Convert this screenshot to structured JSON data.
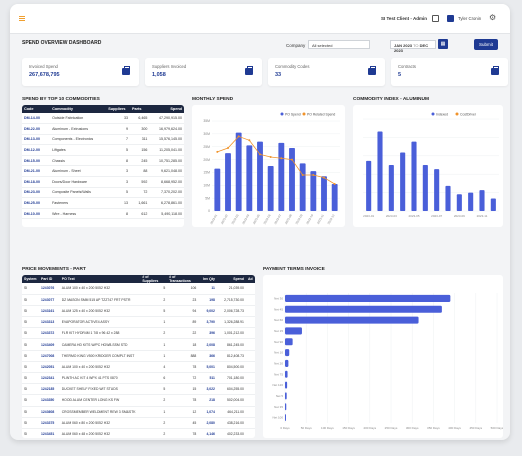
{
  "header": {
    "client": "SI Test Client - Admin",
    "user": "Tyler Cronin"
  },
  "dashboard": {
    "title": "SPEND OVERVIEW DASHBOARD",
    "company_label": "Company",
    "company_value": "All selected",
    "date_from": "JAN 2023",
    "date_to": "DEC 2023",
    "date_sep": "TO",
    "submit_label": "Submit"
  },
  "kpis": [
    {
      "label": "Invoiced Spend",
      "value": "267,678,795"
    },
    {
      "label": "Suppliers Invoiced",
      "value": "1,058"
    },
    {
      "label": "Commodity Codes",
      "value": "33"
    },
    {
      "label": "Contracts",
      "value": "5"
    }
  ],
  "top_commodities": {
    "title": "SPEND BY TOP 10 COMMODITIES",
    "columns": [
      "Code",
      "Commodity",
      "Suppliers",
      "Parts",
      "Spend"
    ],
    "rows": [
      [
        "DM-14-00",
        "Outside Fabrication",
        "33",
        "6,465",
        "47,290,915.00"
      ],
      [
        "DM-22-00",
        "Aluminum - Extrusions",
        "9",
        "300",
        "16,979,624.00"
      ],
      [
        "DM-13-00",
        "Components - Electronics",
        "7",
        "311",
        "15,576,145.00"
      ],
      [
        "DM-12-00",
        "Liftgates",
        "5",
        "156",
        "11,205,041.00"
      ],
      [
        "DM-15-00",
        "Chassis",
        "8",
        "245",
        "10,751,285.00"
      ],
      [
        "DM-21-00",
        "Aluminum - Sheet",
        "3",
        "88",
        "9,621,048.00"
      ],
      [
        "DM-18-00",
        "Doors/Door Hardware",
        "3",
        "592",
        "8,668,952.00"
      ],
      [
        "DM-23-00",
        "Composite Panels/Walls",
        "5",
        "72",
        "7,370,202.00"
      ],
      [
        "DM-25-00",
        "Fasteners",
        "13",
        "1,661",
        "6,278,861.00"
      ],
      [
        "DM-10-00",
        "Wire - Harness",
        "8",
        "612",
        "5,490,118.00"
      ]
    ]
  },
  "monthly_spend": {
    "title": "MONTHLY SPEND",
    "legend": [
      "PO Spend",
      "PO Related Spend"
    ]
  },
  "commodity_index": {
    "title": "COMMODITY INDEX - ALUMINUM",
    "legend": [
      "Indexed",
      "CostDriver"
    ]
  },
  "price_movements": {
    "title": "PRICE MOVEMENTS - PART",
    "columns": [
      "System",
      "Part ID",
      "PO Text",
      "# of Suppliers",
      "# of Transactions",
      "Inv Qty",
      "Spend",
      "Ad"
    ],
    "rows": [
      [
        "SI",
        "1243076",
        "ALUM 100 x 40 x 200 5052 H32",
        "5",
        "106",
        "11",
        "21,039.00"
      ],
      [
        "SI",
        "1243077",
        "DZ MASON SMM 515 AP TZZ747 FRT PSTR",
        "2",
        "23",
        "198",
        "2,715,730.00"
      ],
      [
        "SI",
        "1243161",
        "ALUM 125 x 40 x 200 5052 H32",
        "5",
        "94",
        "9,002",
        "2,006,728.73"
      ],
      [
        "SI",
        "1243313",
        "EVAPORATOR ACTIVE4 ASSY",
        "1",
        "89",
        "3,790",
        "1,326,288.91"
      ],
      [
        "SI",
        "1243372",
        "FLR KIT HYDR4M 1 7/8 x 96 42 x 288",
        "2",
        "22",
        "396",
        "1,001,212.00"
      ],
      [
        "SI",
        "1243409",
        "CAMERA HD KITS W/PC HGW8-SSM STD",
        "1",
        "18",
        "2,008",
        "861,245.00"
      ],
      [
        "SI",
        "1247008",
        "THERMO KING V500 KRIDGER COMPLT INST",
        "1",
        "888",
        "366",
        "812,408.73"
      ],
      [
        "SI",
        "1242051",
        "ALUM 100 x 40 x 200 5052 H32",
        "4",
        "78",
        "5,001",
        "804,500.00"
      ],
      [
        "SI",
        "1242341",
        "PLINTH AC KIT 4 WPX 41 PTS 0870",
        "6",
        "72",
        "511",
        "701,180.00"
      ],
      [
        "SI",
        "1242185",
        "DUCKET SHELF FIXED WIT STUDS",
        "5",
        "15",
        "3,022",
        "604,255.00"
      ],
      [
        "SI",
        "1243350",
        "HOOD ALUM CENTER LONG KS FW",
        "2",
        "78",
        "218",
        "502,004.00"
      ],
      [
        "SI",
        "1243608",
        "CROSSMEMBER WELDMENT REW 3 SM&STK",
        "1",
        "12",
        "1,074",
        "464,211.00"
      ],
      [
        "SI",
        "1243375",
        "ALUM 060 x 80 x 200 5052 H32",
        "2",
        "45",
        "2,080",
        "438,216.00"
      ],
      [
        "SI",
        "1243451",
        "ALUM 060 x 48 x 200 5052 H32",
        "2",
        "78",
        "4,146",
        "402,233.00"
      ]
    ]
  },
  "payment_terms": {
    "title": "PAYMENT TERMS INVOICE"
  },
  "chart_data": [
    {
      "type": "bar",
      "title": "MONTHLY SPEND",
      "categories": [
        "2023-01",
        "2023-02",
        "2023-03",
        "2023-04",
        "2023-05",
        "2023-06",
        "2023-07",
        "2023-08",
        "2023-09",
        "2023-10",
        "2023-11",
        "2023-12"
      ],
      "series": [
        {
          "name": "PO Spend",
          "values": [
            16.5,
            22.5,
            30.5,
            25.5,
            27.0,
            17.5,
            26.5,
            24.5,
            18.5,
            15.5,
            13.5,
            10.5
          ]
        },
        {
          "name": "PO Related Spend",
          "values": [
            23.0,
            24.5,
            29.0,
            27.5,
            22.0,
            21.0,
            20.5,
            20.0,
            14.0,
            14.0,
            13.0,
            10.5
          ]
        }
      ],
      "yticks": [
        "35M",
        "30M",
        "25M",
        "20M",
        "15M",
        "10M",
        "5M",
        "0"
      ],
      "ylim": [
        0,
        35
      ],
      "colors": [
        "#4a5fd9",
        "#f0932b"
      ],
      "legend": "top-right"
    },
    {
      "type": "bar",
      "title": "COMMODITY INDEX - ALUMINUM",
      "categories": [
        "2023-01",
        "2023-02",
        "2023-03",
        "2023-04",
        "2023-05",
        "2023-06",
        "2023-07",
        "2023-08",
        "2023-09",
        "2023-10",
        "2023-11",
        "2023-12"
      ],
      "series": [
        {
          "name": "Indexed",
          "values": [
            0.6,
            0.95,
            0.55,
            0.7,
            0.83,
            0.55,
            0.5,
            0.3,
            0.2,
            0.22,
            0.25,
            0.15
          ]
        }
      ],
      "ylim": [
        0,
        1.1
      ],
      "colors": [
        "#4a5fd9",
        "#f0932b"
      ],
      "legend": "top-right"
    },
    {
      "type": "bar",
      "orientation": "horizontal",
      "title": "PAYMENT TERMS INVOICE",
      "categories": [
        "Net 30",
        "Net 45",
        "Net 60",
        "Net 15",
        "Net 90",
        "Net 10",
        "Net 20",
        "Net 75",
        "Net 120",
        "Net 5",
        "Net 35",
        "Net 100"
      ],
      "values": [
        390,
        370,
        315,
        40,
        18,
        10,
        8,
        6,
        5,
        4,
        3,
        2
      ],
      "xticks": [
        "0 Days",
        "50 Days",
        "100 Days",
        "150 Days",
        "200 Days",
        "250 Days",
        "300 Days",
        "350 Days",
        "400 Days",
        "450 Days",
        "500 Days"
      ],
      "xlim": [
        0,
        500
      ],
      "colors": [
        "#4a5fd9"
      ]
    }
  ]
}
